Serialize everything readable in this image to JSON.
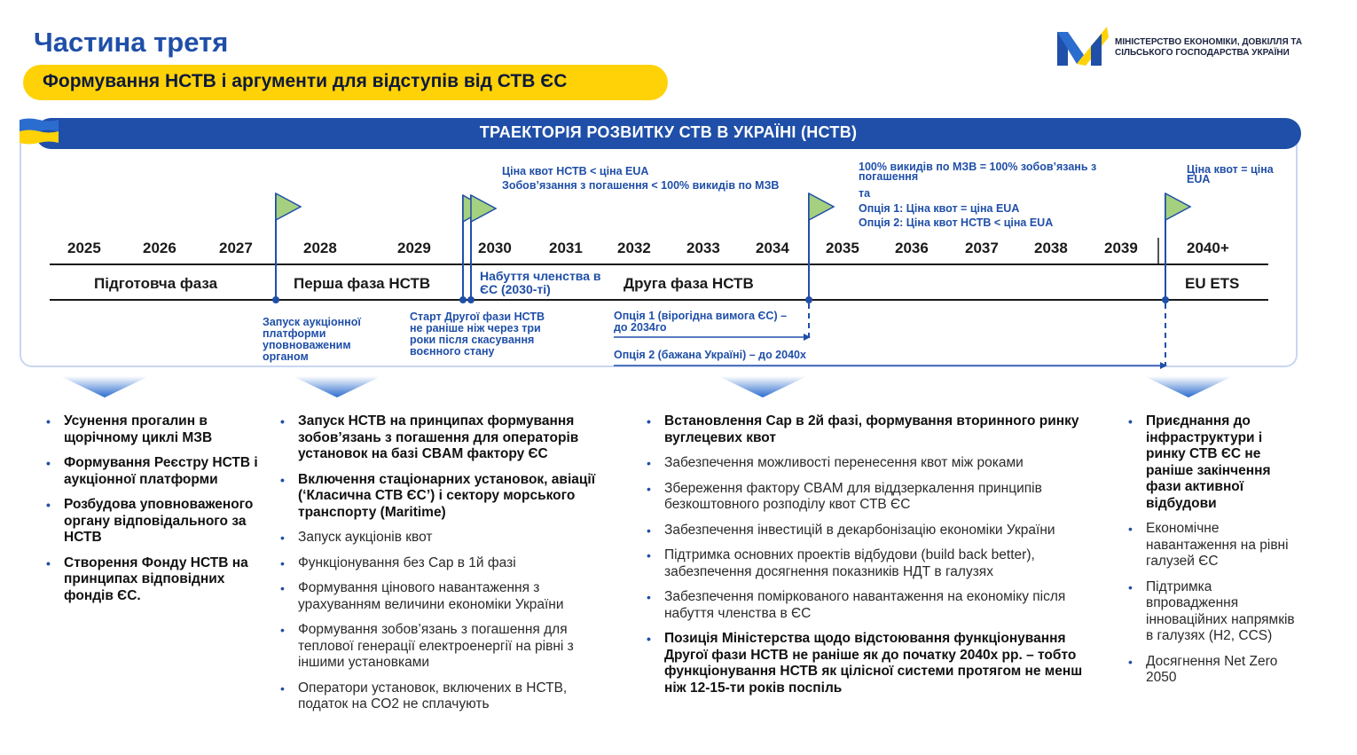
{
  "header": {
    "title": "Частина третя",
    "subtitle": "Формування НСТВ і аргументи для відступів від СТВ ЄС",
    "ministry_name": "МІНІСТЕРСТВО ЕКОНОМІКИ, ДОВКІЛЛЯ ТА СІЛЬСЬКОГО ГОСПОДАРСТВА УКРАЇНИ"
  },
  "colors": {
    "brand_blue": "#1f4fa8",
    "accent_yellow": "#ffd208",
    "flag_green": "#a5d07f"
  },
  "timeline": {
    "banner_title": "ТРАЕКТОРІЯ РОЗВИТКУ СТВ В УКРАЇНІ (НСТВ)",
    "years": [
      "2025",
      "2026",
      "2027",
      "2028",
      "2029",
      "2030",
      "2031",
      "2032",
      "2033",
      "2034",
      "2035",
      "2036",
      "2037",
      "2038",
      "2039",
      "2040+"
    ],
    "phases": {
      "prep": "Підготовча фаза",
      "first": "Перша фаза НСТВ",
      "membership": "Набуття членства в ЄС (2030-ті)",
      "second": "Друга фаза НСТВ",
      "eu_ets": "EU ETS"
    },
    "top_notes": {
      "n2030_line1": "Ціна квот НСТВ < ціна EUA",
      "n2030_line2": "Зобов’язання з погашення < 100% викидів по МЗВ",
      "n2035_line1": "100% викидів по МЗВ = 100% зобов’язань з погашення",
      "n2035_and": "та",
      "n2035_opt1": "Опція 1: Ціна квот = ціна EUA",
      "n2035_opt2": "Опція 2: Ціна квот НСТВ < ціна EUA",
      "n2040": "Ціна квот = ціна EUA"
    },
    "bottom_notes": {
      "auction_launch": "Запуск аукціонної платформи уповноваженим органом",
      "second_phase_start": "Старт Другої фази НСТВ не раніше ніж через три роки після скасування воєнного стану",
      "option1": "Опція 1 (вірогідна вимога ЄС) – до 2034го",
      "option2": "Опція 2 (бажана Україні) – до 2040х"
    }
  },
  "columns": {
    "col1": [
      "Усунення прогалин в щорічному циклі МЗВ",
      "Формування Реєстру НСТВ і аукціонної платформи",
      "Розбудова уповноваженого органу відповідального за НСТВ",
      "Створення Фонду НСТВ на принципах відповідних фондів ЄС."
    ],
    "col2": [
      "Запуск НСТВ на принципах формування зобов’язань з погашення для операторів установок на базі CBAM фактору ЄС",
      "Включення стаціонарних установок, авіації (‘Класична СТВ ЄС’) і сектору морського транспорту (Maritime)",
      "Запуск аукціонів квот",
      "Функціонування без Cap в 1й фазі",
      "Формування цінового навантаження з урахуванням величини економіки України",
      "Формування зобов’язань з погашення для теплової генерації електроенергії на рівні з іншими установками",
      "Оператори установок, включених в НСТВ, податок на CO2 не сплачують"
    ],
    "col3": [
      "Встановлення Cap в 2й фазі, формування вторинного ринку вуглецевих квот",
      "Забезпечення можливості перенесення квот між роками",
      "Збереження фактору CBAM для віддзеркалення принципів безкоштовного розподілу квот СТВ ЄС",
      "Забезпечення інвестицій в декарбонізацію економіки України",
      "Підтримка основних проектів відбудови (build back better), забезпечення досягнення показників НДТ в галузях",
      "Забезпечення поміркованого навантаження на економіку після набуття членства в ЄС",
      "Позиція Міністерства щодо відстоювання функціонування Другої фази НСТВ не раніше як до початку 2040х рр. – тобто функціонування НСТВ як цілісної системи протягом не менш ніж 12-15-ти років поспіль"
    ],
    "col4": [
      "Приєднання до інфраструктури і ринку СТВ ЄС не раніше закінчення фази активної відбудови",
      "Економічне навантаження на рівні галузей ЄС",
      "Підтримка впровадження інноваційних напрямків в галузях (H2, CCS)",
      "Досягнення Net Zero 2050"
    ]
  }
}
